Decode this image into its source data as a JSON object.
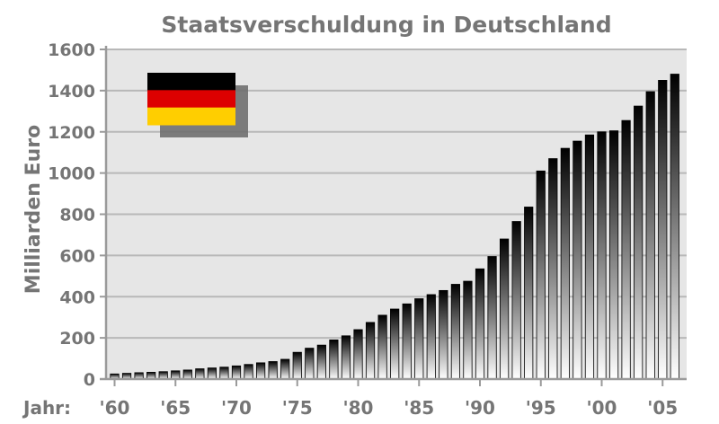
{
  "chart_data": {
    "type": "bar",
    "title": "Staatsverschuldung in Deutschland",
    "ylabel": "Milliarden Euro",
    "xlabel": "Jahr:",
    "ylim": [
      0,
      1600
    ],
    "yticks": [
      "0",
      "200",
      "400",
      "600",
      "800",
      "1000",
      "1200",
      "1400",
      "1600"
    ],
    "xticks": [
      {
        "year": 1960,
        "label": "'60"
      },
      {
        "year": 1965,
        "label": "'65"
      },
      {
        "year": 1970,
        "label": "'70"
      },
      {
        "year": 1975,
        "label": "'75"
      },
      {
        "year": 1980,
        "label": "'80"
      },
      {
        "year": 1985,
        "label": "'85"
      },
      {
        "year": 1990,
        "label": "'90"
      },
      {
        "year": 1995,
        "label": "'95"
      },
      {
        "year": 2000,
        "label": "'00"
      },
      {
        "year": 2005,
        "label": "'05"
      }
    ],
    "grid": true,
    "categories": [
      1960,
      1961,
      1962,
      1963,
      1964,
      1965,
      1966,
      1967,
      1968,
      1969,
      1970,
      1971,
      1972,
      1973,
      1974,
      1975,
      1976,
      1977,
      1978,
      1979,
      1980,
      1981,
      1982,
      1983,
      1984,
      1985,
      1986,
      1987,
      1988,
      1989,
      1990,
      1991,
      1992,
      1993,
      1994,
      1995,
      1996,
      1997,
      1998,
      1999,
      2000,
      2001,
      2002,
      2003,
      2004,
      2005,
      2006
    ],
    "values": [
      25,
      28,
      31,
      33,
      36,
      40,
      44,
      50,
      54,
      58,
      64,
      71,
      79,
      85,
      96,
      130,
      150,
      165,
      190,
      210,
      240,
      275,
      310,
      340,
      365,
      390,
      410,
      430,
      460,
      475,
      535,
      595,
      680,
      765,
      835,
      1010,
      1070,
      1120,
      1155,
      1185,
      1200,
      1205,
      1255,
      1325,
      1395,
      1450,
      1480
    ],
    "colors": {
      "plot_background": "#e6e6e6",
      "grid": "#b8b8b8",
      "axis": "#9a9a9a",
      "text": "#757575",
      "bar_top": "#000000",
      "bar_bottom": "#ffffff"
    },
    "flag_colors": [
      "#000000",
      "#dd0000",
      "#ffce00"
    ]
  }
}
